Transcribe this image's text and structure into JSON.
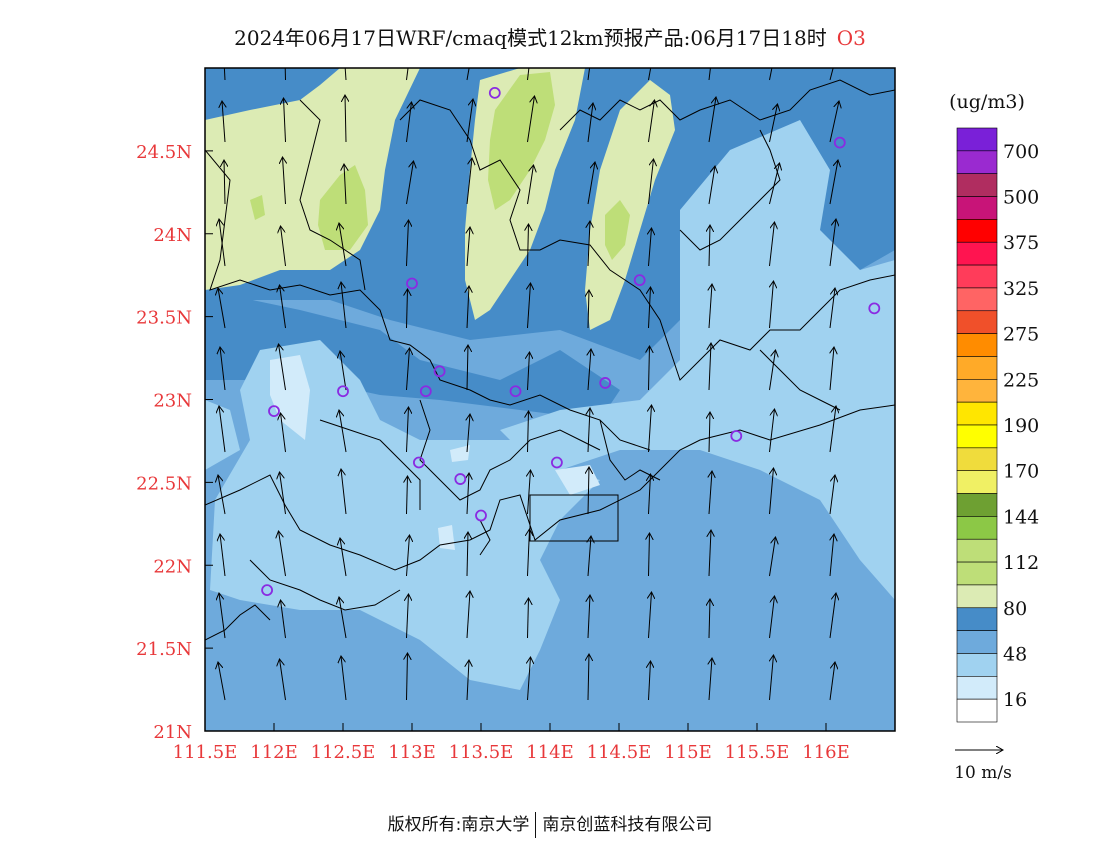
{
  "title": {
    "main": "2024年06月17日WRF/cmaq模式12km预报产品:06月17日18时",
    "species": "O3"
  },
  "axes": {
    "x_ticks": [
      "111.5E",
      "112E",
      "112.5E",
      "113E",
      "113.5E",
      "114E",
      "114.5E",
      "115E",
      "115.5E",
      "116E"
    ],
    "y_ticks": [
      "21N",
      "21.5N",
      "22N",
      "22.5N",
      "23N",
      "23.5N",
      "24N",
      "24.5N"
    ],
    "lon_range": [
      111.5,
      116.5
    ],
    "lat_range": [
      21.0,
      25.0
    ],
    "tick_color": "#e8383a"
  },
  "legend": {
    "unit": "(ug/m3)",
    "labels": [
      "700",
      "500",
      "375",
      "325",
      "275",
      "225",
      "190",
      "170",
      "144",
      "112",
      "80",
      "48",
      "16"
    ],
    "colors": [
      "#7a20d8",
      "#9a2ad0",
      "#b02d60",
      "#c81478",
      "#ff0000",
      "#ff1450",
      "#ff3c5a",
      "#ff6464",
      "#f0502a",
      "#ff8c00",
      "#ffaa28",
      "#ffb43c",
      "#ffe600",
      "#ffff00",
      "#f0dc3c",
      "#f0f064",
      "#6ea032",
      "#8cc846",
      "#bede78",
      "#bede78",
      "#dcebb4",
      "#468cc8",
      "#6eaadc",
      "#a0d2f0",
      "#d2ebfa",
      "#ffffff"
    ]
  },
  "wind_scale": {
    "label": "10 m/s"
  },
  "stations": [
    [
      113.6,
      24.85
    ],
    [
      116.1,
      24.55
    ],
    [
      113.0,
      23.7
    ],
    [
      114.65,
      23.72
    ],
    [
      116.35,
      23.55
    ],
    [
      112.5,
      23.05
    ],
    [
      112.0,
      22.93
    ],
    [
      113.1,
      23.05
    ],
    [
      113.2,
      23.17
    ],
    [
      113.75,
      23.05
    ],
    [
      114.4,
      23.1
    ],
    [
      115.35,
      22.78
    ],
    [
      113.05,
      22.62
    ],
    [
      113.35,
      22.52
    ],
    [
      114.05,
      22.62
    ],
    [
      113.5,
      22.3
    ],
    [
      111.95,
      21.85
    ]
  ],
  "credit": {
    "copyright": "版权所有:南京大学",
    "company": "南京创蓝科技有限公司"
  }
}
